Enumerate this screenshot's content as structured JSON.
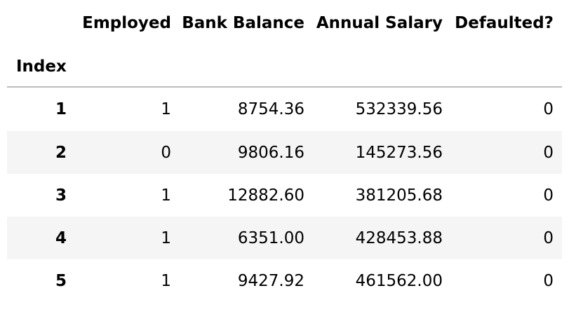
{
  "table": {
    "index_name": "Index",
    "columns": [
      "Employed",
      "Bank Balance",
      "Annual Salary",
      "Defaulted?"
    ],
    "rows": [
      {
        "index": "1",
        "cells": [
          "1",
          "8754.36",
          "532339.56",
          "0"
        ]
      },
      {
        "index": "2",
        "cells": [
          "0",
          "9806.16",
          "145273.56",
          "0"
        ]
      },
      {
        "index": "3",
        "cells": [
          "1",
          "12882.60",
          "381205.68",
          "0"
        ]
      },
      {
        "index": "4",
        "cells": [
          "1",
          "6351.00",
          "428453.88",
          "0"
        ]
      },
      {
        "index": "5",
        "cells": [
          "1",
          "9427.92",
          "461562.00",
          "0"
        ]
      }
    ]
  },
  "colors": {
    "striped_row": "#f5f5f5",
    "header_rule": "#bdbdbd"
  }
}
